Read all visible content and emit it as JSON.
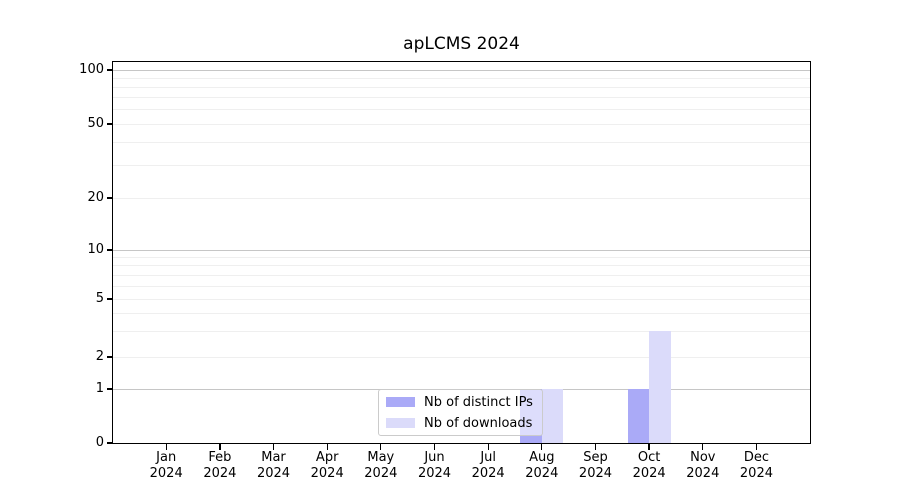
{
  "chart_data": {
    "type": "bar",
    "title": "apLCMS 2024",
    "categories": [
      "Jan 2024",
      "Feb 2024",
      "Mar 2024",
      "Apr 2024",
      "May 2024",
      "Jun 2024",
      "Jul 2024",
      "Aug 2024",
      "Sep 2024",
      "Oct 2024",
      "Nov 2024",
      "Dec 2024"
    ],
    "series": [
      {
        "name": "Nb of distinct IPs",
        "color": "#aaaaf7",
        "values": [
          0,
          0,
          0,
          0,
          0,
          0,
          0,
          1,
          0,
          1,
          0,
          0
        ]
      },
      {
        "name": "Nb of downloads",
        "color": "#dbdbfa",
        "values": [
          0,
          0,
          0,
          0,
          0,
          0,
          0,
          1,
          0,
          3,
          0,
          0
        ]
      }
    ],
    "xlabel": "",
    "ylabel": "",
    "yscale": "symlog-like",
    "ylim": [
      0,
      110
    ],
    "yticks": [
      0,
      1,
      2,
      5,
      10,
      20,
      50,
      100
    ],
    "grid": {
      "major": [
        1,
        10,
        100
      ],
      "minor": [
        2,
        3,
        4,
        5,
        6,
        7,
        8,
        9,
        20,
        30,
        40,
        50,
        60,
        70,
        80,
        90
      ]
    },
    "legend": {
      "position": "bottom-center-inside",
      "entries": [
        "Nb of distinct IPs",
        "Nb of downloads"
      ]
    },
    "colors": {
      "distinct_ips": "#aaaaf7",
      "downloads": "#dbdbfa",
      "major_grid": "#c6c6c6",
      "minor_grid": "#efefef",
      "axis": "#000000",
      "background": "#ffffff"
    }
  }
}
